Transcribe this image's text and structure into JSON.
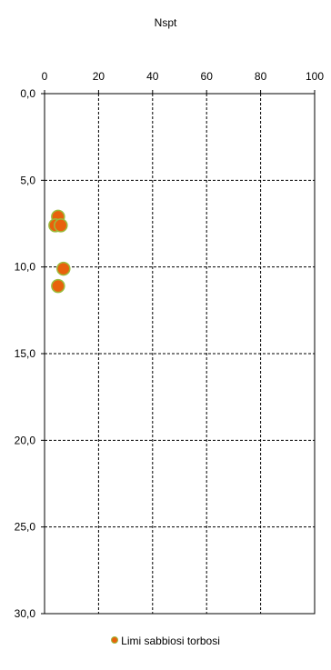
{
  "chart_data": {
    "type": "scatter",
    "title": "Nspt",
    "xlabel": "",
    "ylabel": "",
    "x_axis_position": "top",
    "y_axis_inverted": true,
    "xlim": [
      0,
      100
    ],
    "ylim": [
      0,
      30
    ],
    "x_ticks": [
      0,
      20,
      40,
      60,
      80,
      100
    ],
    "x_tick_labels": [
      "0",
      "20",
      "40",
      "60",
      "80",
      "100"
    ],
    "y_ticks": [
      0,
      5,
      10,
      15,
      20,
      25,
      30
    ],
    "y_tick_labels": [
      "0,0",
      "5,0",
      "10,0",
      "15,0",
      "20,0",
      "25,0",
      "30,0"
    ],
    "grid": true,
    "grid_style": "dashed",
    "legend_placement": "bottom-center",
    "series": [
      {
        "name": "Limi sabbiosi torbosi",
        "marker_fill": "#e8620c",
        "marker_edge": "#9bbb3c",
        "points": [
          {
            "x": 5,
            "y": 7.1
          },
          {
            "x": 4,
            "y": 7.6
          },
          {
            "x": 6,
            "y": 7.6
          },
          {
            "x": 7,
            "y": 10.1
          },
          {
            "x": 5,
            "y": 11.1
          }
        ]
      }
    ]
  }
}
